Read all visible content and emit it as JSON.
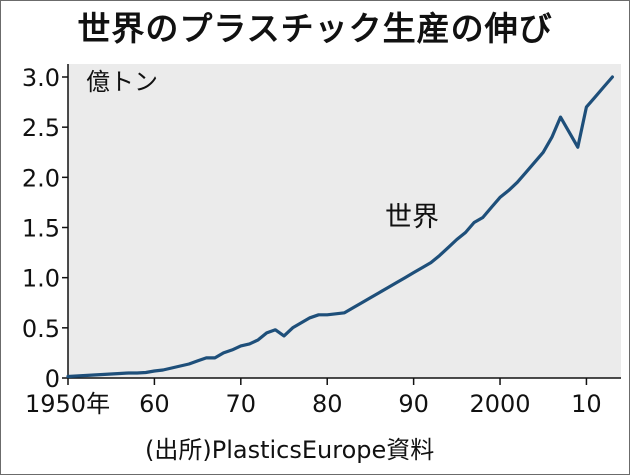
{
  "chart_data": {
    "type": "line",
    "title": "世界のプラスチック生産の伸び",
    "ylabel": "億トン",
    "series_label": "世界",
    "source": "(出所)PlasticsEurope資料",
    "ylim": [
      0,
      3.0
    ],
    "xlim": [
      1950,
      2014
    ],
    "y_ticks": [
      "0",
      "0.5",
      "1.0",
      "1.5",
      "2.0",
      "2.5",
      "3.0"
    ],
    "x_ticks": [
      {
        "value": 1950,
        "label": "1950年"
      },
      {
        "value": 1960,
        "label": "60"
      },
      {
        "value": 1970,
        "label": "70"
      },
      {
        "value": 1980,
        "label": "80"
      },
      {
        "value": 1990,
        "label": "90"
      },
      {
        "value": 2000,
        "label": "2000"
      },
      {
        "value": 2010,
        "label": "10"
      }
    ],
    "grid": false,
    "line_color": "#1e4f7a",
    "series": [
      {
        "x": [
          1950,
          1951,
          1952,
          1953,
          1954,
          1955,
          1956,
          1957,
          1958,
          1959,
          1960,
          1961,
          1962,
          1963,
          1964,
          1965,
          1966,
          1967,
          1968,
          1969,
          1970,
          1971,
          1972,
          1973,
          1974,
          1975,
          1976,
          1977,
          1978,
          1979,
          1980,
          1981,
          1982,
          1983,
          1984,
          1985,
          1986,
          1987,
          1988,
          1989,
          1990,
          1991,
          1992,
          1993,
          1994,
          1995,
          1996,
          1997,
          1998,
          1999,
          2000,
          2001,
          2002,
          2003,
          2004,
          2005,
          2006,
          2007,
          2008,
          2009,
          2010,
          2011,
          2012,
          2013
        ],
        "y": [
          0.015,
          0.02,
          0.025,
          0.03,
          0.035,
          0.04,
          0.045,
          0.05,
          0.05,
          0.055,
          0.07,
          0.08,
          0.1,
          0.12,
          0.14,
          0.17,
          0.2,
          0.2,
          0.25,
          0.28,
          0.32,
          0.34,
          0.38,
          0.45,
          0.48,
          0.42,
          0.5,
          0.55,
          0.6,
          0.63,
          0.63,
          0.64,
          0.65,
          0.7,
          0.75,
          0.8,
          0.85,
          0.9,
          0.95,
          1.0,
          1.05,
          1.1,
          1.15,
          1.22,
          1.3,
          1.38,
          1.45,
          1.55,
          1.6,
          1.7,
          1.8,
          1.87,
          1.95,
          2.05,
          2.15,
          2.25,
          2.4,
          2.6,
          2.45,
          2.3,
          2.7,
          2.8,
          2.9,
          3.0
        ]
      }
    ]
  }
}
